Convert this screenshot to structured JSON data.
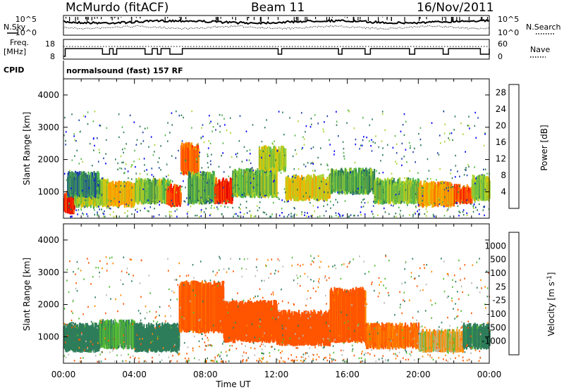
{
  "header": {
    "station": "McMurdo (fitACF)",
    "beam": "Beam 11",
    "date": "16/Nov/2011"
  },
  "sky_panel": {
    "left_label": "N.Sky",
    "right_label": "N.Search",
    "left_ticks": [
      "10^5",
      "10^0"
    ],
    "right_ticks": [
      "10^5",
      "10^0"
    ]
  },
  "freq_panel": {
    "left_label_line1": "Freq.",
    "left_label_line2": "[MHz]",
    "right_label": "Nave",
    "left_ticks": [
      "18",
      "8"
    ],
    "right_ticks": [
      "60",
      "0"
    ]
  },
  "cpid": {
    "label": "CPID",
    "text": "normalsound (fast) 157 RF"
  },
  "colors": {
    "power": [
      "#0000ff",
      "#1a3fa6",
      "#2d7a55",
      "#52b74a",
      "#a8d430",
      "#e8c000",
      "#ff9900",
      "#ff6600",
      "#ff2200",
      "#dd0000"
    ],
    "velocity": [
      "#1a3bcc",
      "#2d5fa8",
      "#2e7d5a",
      "#55bb33",
      "#b8b8b0",
      "#ffaa33",
      "#ff8800",
      "#ff5500",
      "#ee0000"
    ]
  },
  "time_axis": {
    "label": "Time UT",
    "ticks": [
      "00:00",
      "04:00",
      "08:00",
      "12:00",
      "16:00",
      "20:00",
      "00:00"
    ]
  },
  "chart_data": [
    {
      "type": "heatmap",
      "title": "",
      "ylabel": "Slant Range [km]",
      "y_ticks": [
        1000,
        2000,
        3000,
        4000
      ],
      "ylim": [
        180,
        4500
      ],
      "xlim": [
        0,
        24
      ],
      "colorbar": {
        "label": "Power [dB]",
        "ticks": [
          4,
          8,
          12,
          16,
          20,
          24,
          28
        ],
        "range": [
          0,
          30
        ]
      },
      "bands": [
        {
          "x": [
            0.0,
            0.6
          ],
          "y": [
            400,
            900
          ],
          "value": 27
        },
        {
          "x": [
            0.6,
            2.5
          ],
          "y": [
            600,
            1300
          ],
          "value": 14
        },
        {
          "x": [
            0.2,
            2.0
          ],
          "y": [
            900,
            1500
          ],
          "value": 8
        },
        {
          "x": [
            2.5,
            4.0
          ],
          "y": [
            600,
            1200
          ],
          "value": 18
        },
        {
          "x": [
            4.0,
            6.0
          ],
          "y": [
            700,
            1300
          ],
          "value": 12
        },
        {
          "x": [
            5.8,
            6.6
          ],
          "y": [
            600,
            1100
          ],
          "value": 24
        },
        {
          "x": [
            6.6,
            7.6
          ],
          "y": [
            1600,
            2400
          ],
          "value": 22
        },
        {
          "x": [
            7.0,
            8.5
          ],
          "y": [
            700,
            1500
          ],
          "value": 10
        },
        {
          "x": [
            8.5,
            9.5
          ],
          "y": [
            700,
            1300
          ],
          "value": 26
        },
        {
          "x": [
            9.5,
            12.0
          ],
          "y": [
            900,
            1600
          ],
          "value": 12
        },
        {
          "x": [
            11.0,
            12.5
          ],
          "y": [
            1700,
            2300
          ],
          "value": 14
        },
        {
          "x": [
            12.5,
            15.0
          ],
          "y": [
            800,
            1400
          ],
          "value": 16
        },
        {
          "x": [
            15.0,
            17.5
          ],
          "y": [
            1000,
            1600
          ],
          "value": 10
        },
        {
          "x": [
            17.5,
            20.0
          ],
          "y": [
            700,
            1300
          ],
          "value": 12
        },
        {
          "x": [
            20.0,
            22.0
          ],
          "y": [
            600,
            1200
          ],
          "value": 18
        },
        {
          "x": [
            22.0,
            23.0
          ],
          "y": [
            700,
            1100
          ],
          "value": 24
        },
        {
          "x": [
            23.0,
            24.0
          ],
          "y": [
            800,
            1400
          ],
          "value": 12
        }
      ]
    },
    {
      "type": "heatmap",
      "title": "",
      "ylabel": "Slant Range [km]",
      "y_ticks": [
        1000,
        2000,
        3000,
        4000
      ],
      "ylim": [
        180,
        4500
      ],
      "xlim": [
        0,
        24
      ],
      "colorbar": {
        "label": "Velocity [m s^-1]",
        "ticks": [
          1000,
          500,
          100,
          25,
          -25,
          -100,
          -500,
          -1000
        ]
      },
      "bands": [
        {
          "x": [
            0.0,
            2.0
          ],
          "y": [
            600,
            1300
          ],
          "value": 200
        },
        {
          "x": [
            2.0,
            4.0
          ],
          "y": [
            700,
            1400
          ],
          "value": 80
        },
        {
          "x": [
            4.0,
            6.5
          ],
          "y": [
            600,
            1300
          ],
          "value": 300
        },
        {
          "x": [
            6.5,
            9.0
          ],
          "y": [
            1200,
            2600
          ],
          "value": -150
        },
        {
          "x": [
            9.0,
            12.0
          ],
          "y": [
            900,
            2000
          ],
          "value": -200
        },
        {
          "x": [
            12.0,
            15.0
          ],
          "y": [
            800,
            1700
          ],
          "value": -250
        },
        {
          "x": [
            15.0,
            17.0
          ],
          "y": [
            900,
            2400
          ],
          "value": -150
        },
        {
          "x": [
            17.0,
            20.0
          ],
          "y": [
            700,
            1300
          ],
          "value": -100
        },
        {
          "x": [
            20.0,
            22.5
          ],
          "y": [
            600,
            1100
          ],
          "value": 0
        },
        {
          "x": [
            22.5,
            24.0
          ],
          "y": [
            700,
            1300
          ],
          "value": 150
        }
      ]
    }
  ]
}
